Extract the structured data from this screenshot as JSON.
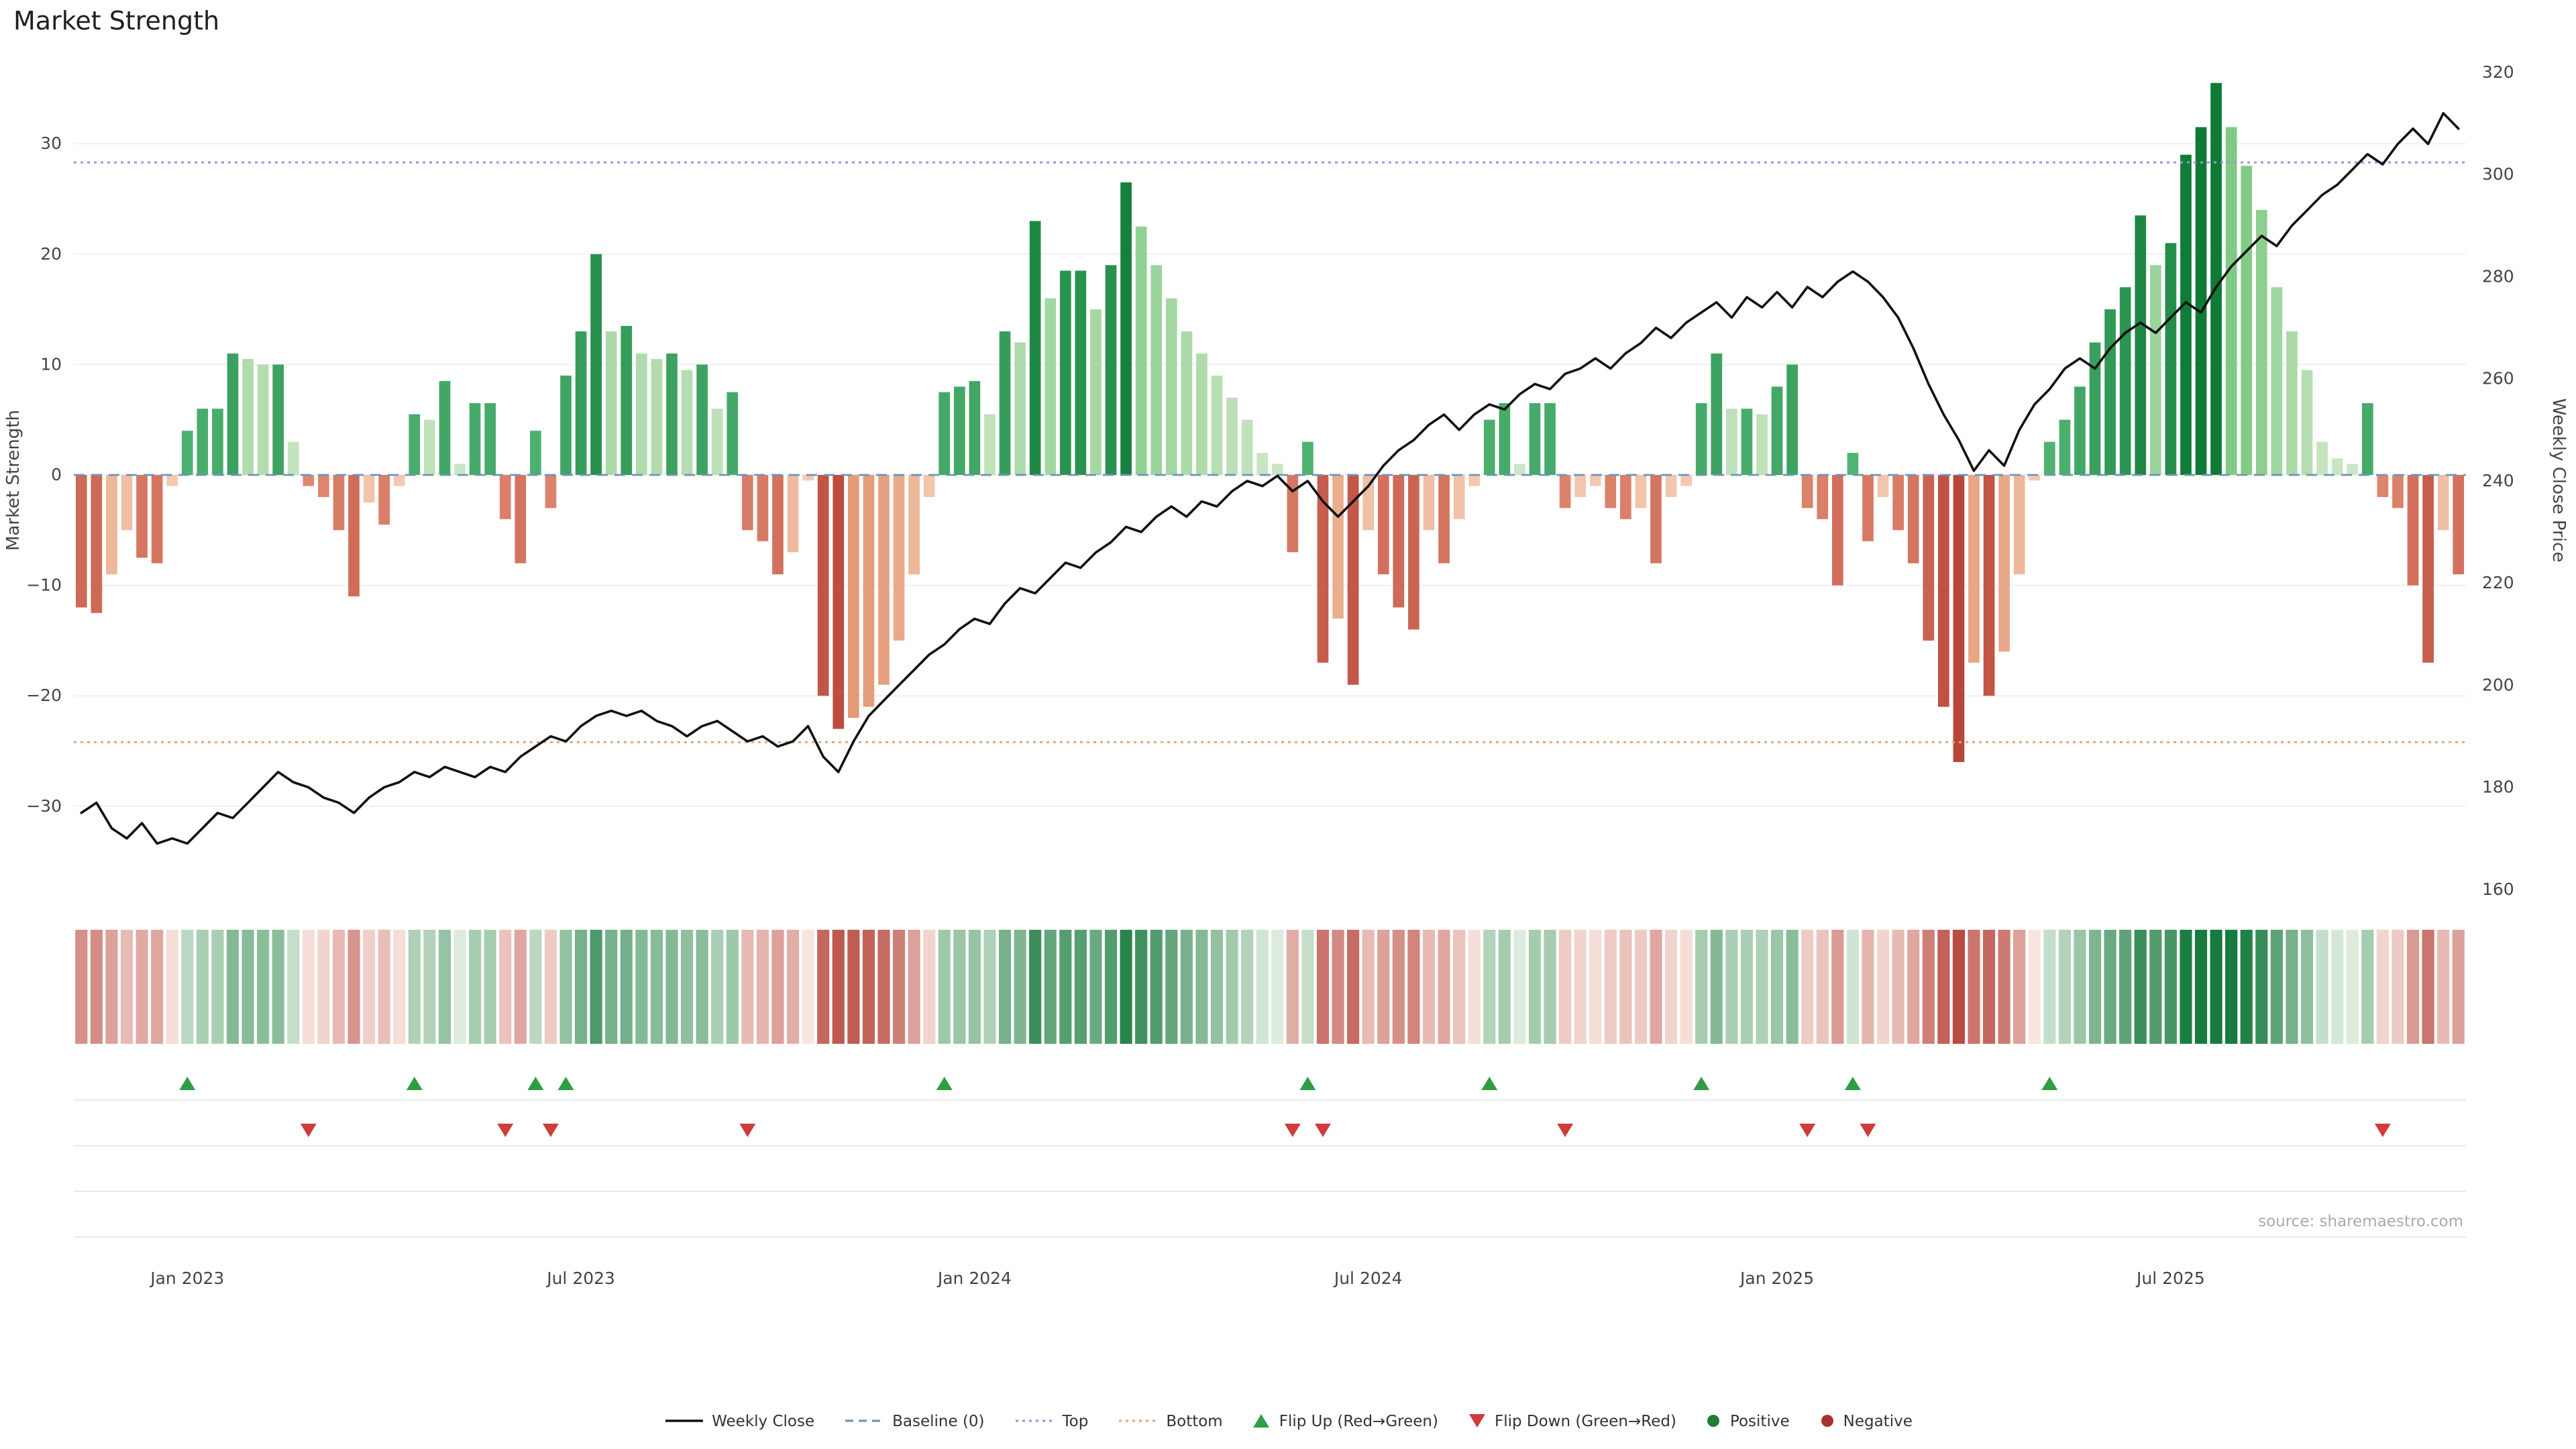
{
  "page": {
    "title": "Market Strength",
    "source": "source: sharemaestro.com"
  },
  "axes": {
    "left_label": "Market Strength",
    "right_label": "Weekly Close Price"
  },
  "chart_data": {
    "type": "bar+line",
    "title": "Market Strength",
    "y_left": {
      "label": "Market Strength",
      "ticks": [
        -30,
        -20,
        -10,
        0,
        10,
        20,
        30
      ],
      "range": [
        -38,
        38.5
      ]
    },
    "y_right": {
      "label": "Weekly Close Price",
      "ticks": [
        160,
        180,
        200,
        220,
        240,
        260,
        280,
        300,
        320
      ],
      "range": [
        158,
        323
      ]
    },
    "x_ticks": [
      {
        "label": "Jan 2023",
        "month": "2023-01"
      },
      {
        "label": "Jul 2023",
        "month": "2023-07"
      },
      {
        "label": "Jan 2024",
        "month": "2024-01"
      },
      {
        "label": "Jul 2024",
        "month": "2024-07"
      },
      {
        "label": "Jan 2025",
        "month": "2025-01"
      },
      {
        "label": "Jul 2025",
        "month": "2025-07"
      }
    ],
    "reference_lines": {
      "baseline": 0,
      "top": 28.3,
      "bottom": -24.2
    },
    "x": [
      "2022-11-14",
      "2022-11-21",
      "2022-11-28",
      "2022-12-05",
      "2022-12-12",
      "2022-12-19",
      "2022-12-26",
      "2023-01-02",
      "2023-01-09",
      "2023-01-16",
      "2023-01-23",
      "2023-01-30",
      "2023-02-06",
      "2023-02-13",
      "2023-02-20",
      "2023-02-27",
      "2023-03-06",
      "2023-03-13",
      "2023-03-20",
      "2023-03-27",
      "2023-04-03",
      "2023-04-10",
      "2023-04-17",
      "2023-04-24",
      "2023-05-01",
      "2023-05-08",
      "2023-05-15",
      "2023-05-22",
      "2023-05-29",
      "2023-06-05",
      "2023-06-12",
      "2023-06-19",
      "2023-06-26",
      "2023-07-03",
      "2023-07-10",
      "2023-07-17",
      "2023-07-24",
      "2023-07-31",
      "2023-08-07",
      "2023-08-14",
      "2023-08-21",
      "2023-08-28",
      "2023-09-04",
      "2023-09-11",
      "2023-09-18",
      "2023-09-25",
      "2023-10-02",
      "2023-10-09",
      "2023-10-16",
      "2023-10-23",
      "2023-10-30",
      "2023-11-06",
      "2023-11-13",
      "2023-11-20",
      "2023-11-27",
      "2023-12-04",
      "2023-12-11",
      "2023-12-18",
      "2023-12-25",
      "2024-01-01",
      "2024-01-08",
      "2024-01-15",
      "2024-01-22",
      "2024-01-29",
      "2024-02-05",
      "2024-02-12",
      "2024-02-19",
      "2024-02-26",
      "2024-03-04",
      "2024-03-11",
      "2024-03-18",
      "2024-03-25",
      "2024-04-01",
      "2024-04-08",
      "2024-04-15",
      "2024-04-22",
      "2024-04-29",
      "2024-05-06",
      "2024-05-13",
      "2024-05-20",
      "2024-05-27",
      "2024-06-03",
      "2024-06-10",
      "2024-06-17",
      "2024-06-24",
      "2024-07-01",
      "2024-07-08",
      "2024-07-15",
      "2024-07-22",
      "2024-07-29",
      "2024-08-05",
      "2024-08-12",
      "2024-08-19",
      "2024-08-26",
      "2024-09-02",
      "2024-09-09",
      "2024-09-16",
      "2024-09-23",
      "2024-09-30",
      "2024-10-07",
      "2024-10-14",
      "2024-10-21",
      "2024-10-28",
      "2024-11-04",
      "2024-11-11",
      "2024-11-18",
      "2024-11-25",
      "2024-12-02",
      "2024-12-09",
      "2024-12-16",
      "2024-12-23",
      "2024-12-30",
      "2025-01-06",
      "2025-01-13",
      "2025-01-20",
      "2025-01-27",
      "2025-02-03",
      "2025-02-10",
      "2025-02-17",
      "2025-02-24",
      "2025-03-03",
      "2025-03-10",
      "2025-03-17",
      "2025-03-24",
      "2025-03-31",
      "2025-04-07",
      "2025-04-14",
      "2025-04-21",
      "2025-04-28",
      "2025-05-05",
      "2025-05-12",
      "2025-05-19",
      "2025-05-26",
      "2025-06-02",
      "2025-06-09",
      "2025-06-16",
      "2025-06-23",
      "2025-06-30",
      "2025-07-07",
      "2025-07-14",
      "2025-07-21",
      "2025-07-28",
      "2025-08-04",
      "2025-08-11",
      "2025-08-18",
      "2025-08-25",
      "2025-09-01",
      "2025-09-08",
      "2025-09-15",
      "2025-09-22",
      "2025-09-29",
      "2025-10-06",
      "2025-10-13",
      "2025-10-20",
      "2025-10-27",
      "2025-11-03",
      "2025-11-10",
      "2025-11-17"
    ],
    "series": [
      {
        "name": "Market Strength",
        "type": "bar",
        "axis": "left",
        "values": [
          -12,
          -12.5,
          -9,
          -5,
          -7.5,
          -8,
          -1,
          4,
          6,
          6,
          11,
          10.5,
          10,
          10,
          3,
          -1,
          -2,
          -5,
          -11,
          -2.5,
          -4.5,
          -1,
          5.5,
          5,
          8.5,
          1,
          6.5,
          6.5,
          -4,
          -8,
          4,
          -3,
          9,
          13,
          20,
          13,
          13.5,
          11,
          10.5,
          11,
          9.5,
          10,
          6,
          7.5,
          -5,
          -6,
          -9,
          -7,
          -0.5,
          -20,
          -23,
          -22,
          -21,
          -19,
          -15,
          -9,
          -2,
          7.5,
          8,
          8.5,
          5.5,
          13,
          12,
          23,
          16,
          18.5,
          18.5,
          15,
          19,
          26.5,
          22.5,
          19,
          16,
          13,
          11,
          9,
          7,
          5,
          2,
          1,
          -7,
          3,
          -17,
          -13,
          -19,
          -5,
          -9,
          -12,
          -14,
          -5,
          -8,
          -4,
          -1,
          5,
          6.5,
          1,
          6.5,
          6.5,
          -3,
          -2,
          -1,
          -3,
          -4,
          -3,
          -8,
          -2,
          -1,
          6.5,
          11,
          6,
          6,
          5.5,
          8,
          10,
          -3,
          -4,
          -10,
          2,
          -6,
          -2,
          -5,
          -8,
          -15,
          -21,
          -26,
          -17,
          -20,
          -16,
          -9,
          -0.5,
          3,
          5,
          8,
          12,
          15,
          17,
          23.5,
          19,
          21,
          29,
          31.5,
          35.5,
          31.5,
          28,
          24,
          17,
          13,
          9.5,
          3,
          1.5,
          1,
          6.5,
          -2,
          -3,
          -10,
          -17,
          -5,
          -9
        ]
      },
      {
        "name": "Weekly Close",
        "type": "line",
        "axis": "right",
        "values": [
          175,
          177,
          172,
          170,
          173,
          169,
          170,
          169,
          172,
          175,
          174,
          177,
          180,
          183,
          181,
          180,
          178,
          177,
          175,
          178,
          180,
          181,
          183,
          182,
          184,
          183,
          182,
          184,
          183,
          186,
          188,
          190,
          189,
          192,
          194,
          195,
          194,
          195,
          193,
          192,
          190,
          192,
          193,
          191,
          189,
          190,
          188,
          189,
          192,
          186,
          183,
          189,
          194,
          197,
          200,
          203,
          206,
          208,
          211,
          213,
          212,
          216,
          219,
          218,
          221,
          224,
          223,
          226,
          228,
          231,
          230,
          233,
          235,
          233,
          236,
          235,
          238,
          240,
          239,
          241,
          238,
          240,
          236,
          233,
          236,
          239,
          243,
          246,
          248,
          251,
          253,
          250,
          253,
          255,
          254,
          257,
          259,
          258,
          261,
          262,
          264,
          262,
          265,
          267,
          270,
          268,
          271,
          273,
          275,
          272,
          276,
          274,
          277,
          274,
          278,
          276,
          279,
          281,
          279,
          276,
          272,
          266,
          259,
          253,
          248,
          242,
          246,
          243,
          250,
          255,
          258,
          262,
          264,
          262,
          266,
          269,
          271,
          269,
          272,
          275,
          273,
          278,
          282,
          285,
          288,
          286,
          290,
          293,
          296,
          298,
          301,
          304,
          302,
          306,
          309,
          306,
          312,
          309
        ]
      }
    ],
    "flip_up_dates": [
      "2023-01-02",
      "2023-04-17",
      "2023-06-12",
      "2023-06-26",
      "2023-12-18",
      "2024-06-03",
      "2024-08-26",
      "2024-12-02",
      "2025-02-10",
      "2025-05-12"
    ],
    "flip_down_dates": [
      "2023-02-27",
      "2023-05-29",
      "2023-06-19",
      "2023-09-18",
      "2024-05-27",
      "2024-06-10",
      "2024-09-30",
      "2025-01-20",
      "2025-02-17",
      "2025-10-13"
    ]
  },
  "legend": {
    "items": [
      {
        "label": "Weekly Close",
        "marker": "solid-line",
        "color": "#111111",
        "icon": "weekly-close-line-icon"
      },
      {
        "label": "Baseline (0)",
        "marker": "dashed-line",
        "color": "#6f94b8",
        "icon": "baseline-icon"
      },
      {
        "label": "Top",
        "marker": "dotted-line",
        "color": "#a292d8",
        "icon": "top-line-icon"
      },
      {
        "label": "Bottom",
        "marker": "dotted-line",
        "color": "#e2a878",
        "icon": "bottom-line-icon"
      },
      {
        "label": "Flip Up (Red→Green)",
        "marker": "triangle-up",
        "color": "#2e9e44",
        "icon": "flip-up-triangle-icon"
      },
      {
        "label": "Flip Down (Green→Red)",
        "marker": "triangle-down",
        "color": "#cf3c3c",
        "icon": "flip-down-triangle-icon"
      },
      {
        "label": "Positive",
        "marker": "dot",
        "color": "#1e7e34",
        "icon": "positive-dot-icon"
      },
      {
        "label": "Negative",
        "marker": "dot",
        "color": "#a83232",
        "icon": "negative-dot-icon"
      }
    ]
  },
  "colors": {
    "positive_strong": "#0e7a36",
    "positive_weak": "#9fd49b",
    "negative_strong": "#b23a30",
    "negative_weak": "#e9a07a",
    "baseline": "#6f94b8",
    "top_line": "#a292d8",
    "bottom_line": "#e2a878",
    "close_line": "#111111"
  }
}
